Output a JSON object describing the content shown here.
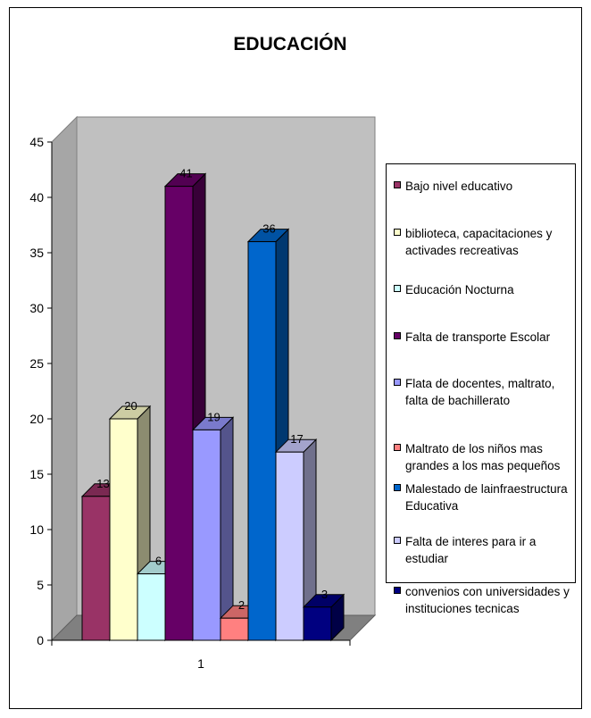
{
  "chart_data": {
    "type": "bar",
    "title": "EDUCACIÓN",
    "categories": [
      "1"
    ],
    "ylim": [
      0,
      45
    ],
    "yticks": [
      0,
      5,
      10,
      15,
      20,
      25,
      30,
      35,
      40,
      45
    ],
    "grid": false,
    "legend_position": "right",
    "series": [
      {
        "name": "Bajo nivel educativo",
        "values": [
          13
        ],
        "color": "#993366",
        "label": "13"
      },
      {
        "name": "biblioteca, capacitaciones y activades recreativas",
        "values": [
          20
        ],
        "color": "#ffffcc",
        "label": "20"
      },
      {
        "name": "Educación Nocturna",
        "values": [
          6
        ],
        "color": "#ccffff",
        "label": "6"
      },
      {
        "name": "Falta de transporte Escolar",
        "values": [
          41
        ],
        "color": "#660066",
        "label": "41"
      },
      {
        "name": "Flata de docentes, maltrato, falta de bachillerato",
        "values": [
          19
        ],
        "color": "#9999ff",
        "label": "19"
      },
      {
        "name": "Maltrato de los niños mas grandes a los mas pequeños",
        "values": [
          2
        ],
        "color": "#ff8080",
        "label": "2"
      },
      {
        "name": "Malestado de lainfraestructura Educativa",
        "values": [
          36
        ],
        "color": "#0066cc",
        "label": "36"
      },
      {
        "name": "Falta de interes para ir a estudiar",
        "values": [
          17
        ],
        "color": "#ccccff",
        "label": "17"
      },
      {
        "name": "convenios con universidades y instituciones tecnicas",
        "values": [
          3
        ],
        "color": "#000080",
        "label": "3"
      }
    ]
  }
}
